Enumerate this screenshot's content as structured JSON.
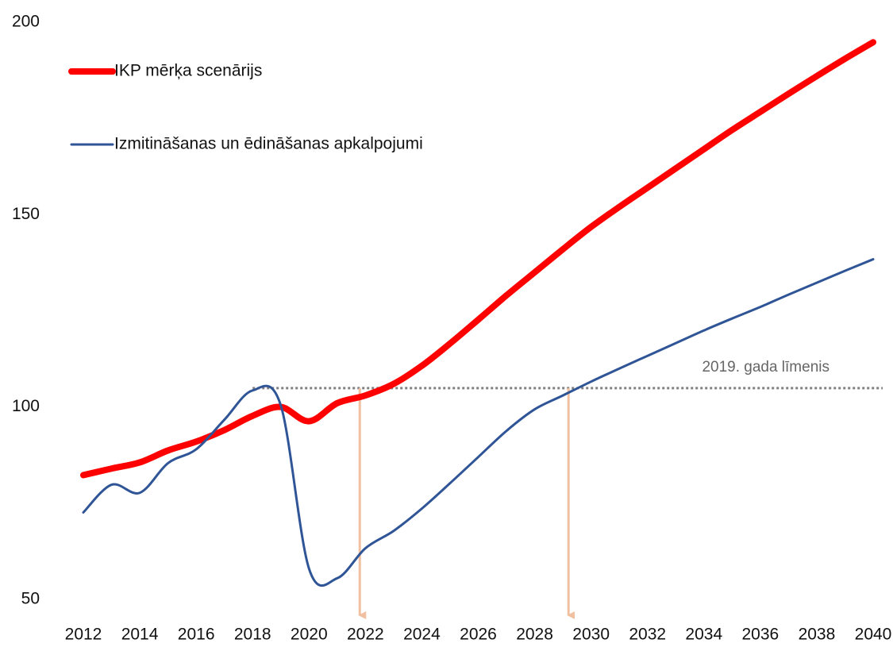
{
  "chart_data": {
    "type": "line",
    "x": [
      2012,
      2013,
      2014,
      2015,
      2016,
      2017,
      2018,
      2019,
      2020,
      2021,
      2022,
      2023,
      2024,
      2025,
      2026,
      2027,
      2028,
      2029,
      2030,
      2031,
      2032,
      2033,
      2034,
      2035,
      2036,
      2037,
      2038,
      2039,
      2040
    ],
    "series": [
      {
        "name": "IKP mērķa scenārijs",
        "color": "#ff0000",
        "values": [
          82.3,
          84,
          85.6,
          88.7,
          91,
          94,
          97.7,
          100,
          96.3,
          101,
          103,
          106,
          110.7,
          116.5,
          122.7,
          129,
          135,
          141,
          146.8,
          152,
          157,
          162,
          167,
          172,
          176.7,
          181.4,
          186,
          190.5,
          194.8
        ]
      },
      {
        "name": "Izmitināšanas un ēdināšanas apkalpojumi",
        "color": "#2f5597",
        "values": [
          72.6,
          79.8,
          77.7,
          85.4,
          89,
          96.7,
          104.3,
          100.4,
          58,
          55.5,
          63.3,
          67.8,
          73.6,
          80.2,
          87,
          93.8,
          99.4,
          103,
          106.6,
          110,
          113.3,
          116.6,
          119.9,
          123,
          126,
          129.2,
          132.3,
          135.4,
          138.4
        ]
      }
    ],
    "reference_line": {
      "label": "2019. gada līmenis",
      "value": 104.9,
      "from_x": 2018,
      "color": "#808080"
    },
    "arrows_x": [
      2021.8,
      2029.2
    ],
    "arrow_color": "#f0c0a0",
    "xlim": [
      2012,
      2040
    ],
    "xticks": [
      2012,
      2014,
      2016,
      2018,
      2020,
      2022,
      2024,
      2026,
      2028,
      2030,
      2032,
      2034,
      2036,
      2038,
      2040
    ],
    "ylim": [
      50,
      200
    ],
    "yticks": [
      50,
      100,
      150,
      200
    ],
    "grid": false,
    "legend": "top-left"
  }
}
